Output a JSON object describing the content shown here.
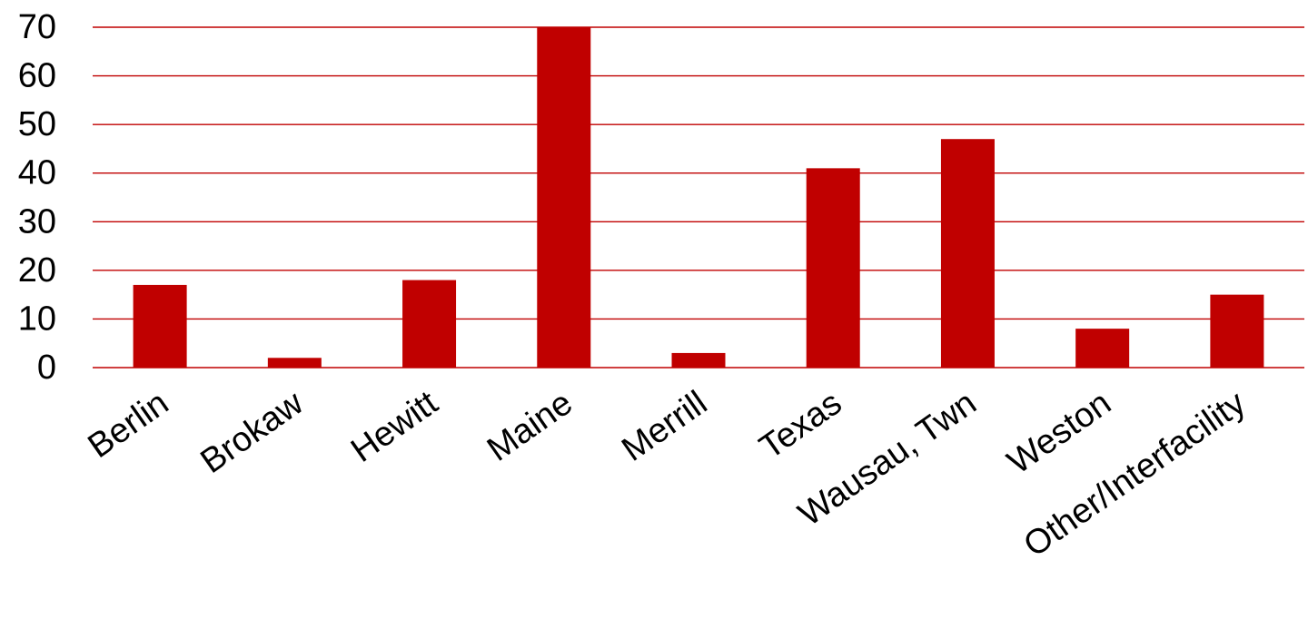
{
  "chart_data": {
    "type": "bar",
    "title": "",
    "xlabel": "",
    "ylabel": "",
    "categories": [
      "Berlin",
      "Brokaw",
      "Hewitt",
      "Maine",
      "Merrill",
      "Texas",
      "Wausau, Twn",
      "Weston",
      "Other/Interfacility"
    ],
    "values": [
      17,
      2,
      18,
      70,
      3,
      41,
      47,
      8,
      15
    ],
    "ylim": [
      0,
      70
    ],
    "yticks": [
      0,
      10,
      20,
      30,
      40,
      50,
      60,
      70
    ],
    "grid": true,
    "legend": "none",
    "colors": {
      "bar": "#c00000",
      "grid": "#c00000",
      "text": "#000000"
    }
  }
}
